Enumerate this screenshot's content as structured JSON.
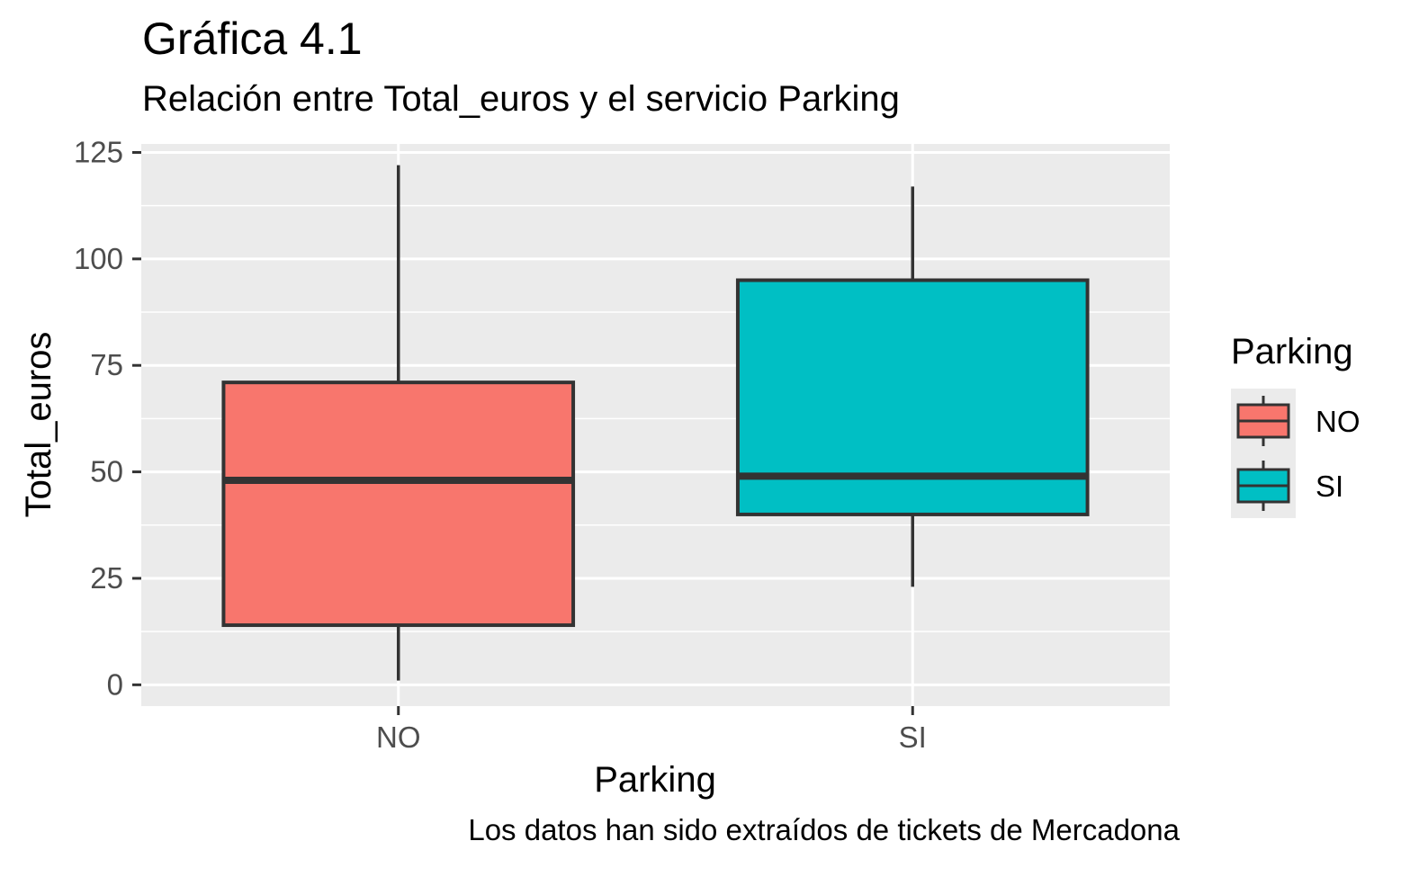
{
  "chart_data": {
    "type": "boxplot",
    "title": "Gráfica 4.1",
    "subtitle": "Relación entre Total_euros y el servicio Parking",
    "caption": "Los datos han sido extraídos de tickets de Mercadona",
    "xlabel": "Parking",
    "ylabel": "Total_euros",
    "categories": [
      "NO",
      "SI"
    ],
    "ylim": [
      -5,
      127
    ],
    "yticks": [
      0,
      25,
      50,
      75,
      100,
      125
    ],
    "grid": true,
    "legend": {
      "title": "Parking",
      "position": "right",
      "entries": [
        "NO",
        "SI"
      ]
    },
    "boxes": [
      {
        "category": "NO",
        "min": 1,
        "q1": 14,
        "median": 48,
        "q3": 71,
        "max": 122,
        "color": "#F8766D"
      },
      {
        "category": "SI",
        "min": 23,
        "q1": 40,
        "median": 49,
        "q3": 95,
        "max": 117,
        "color": "#00BFC4"
      }
    ]
  }
}
